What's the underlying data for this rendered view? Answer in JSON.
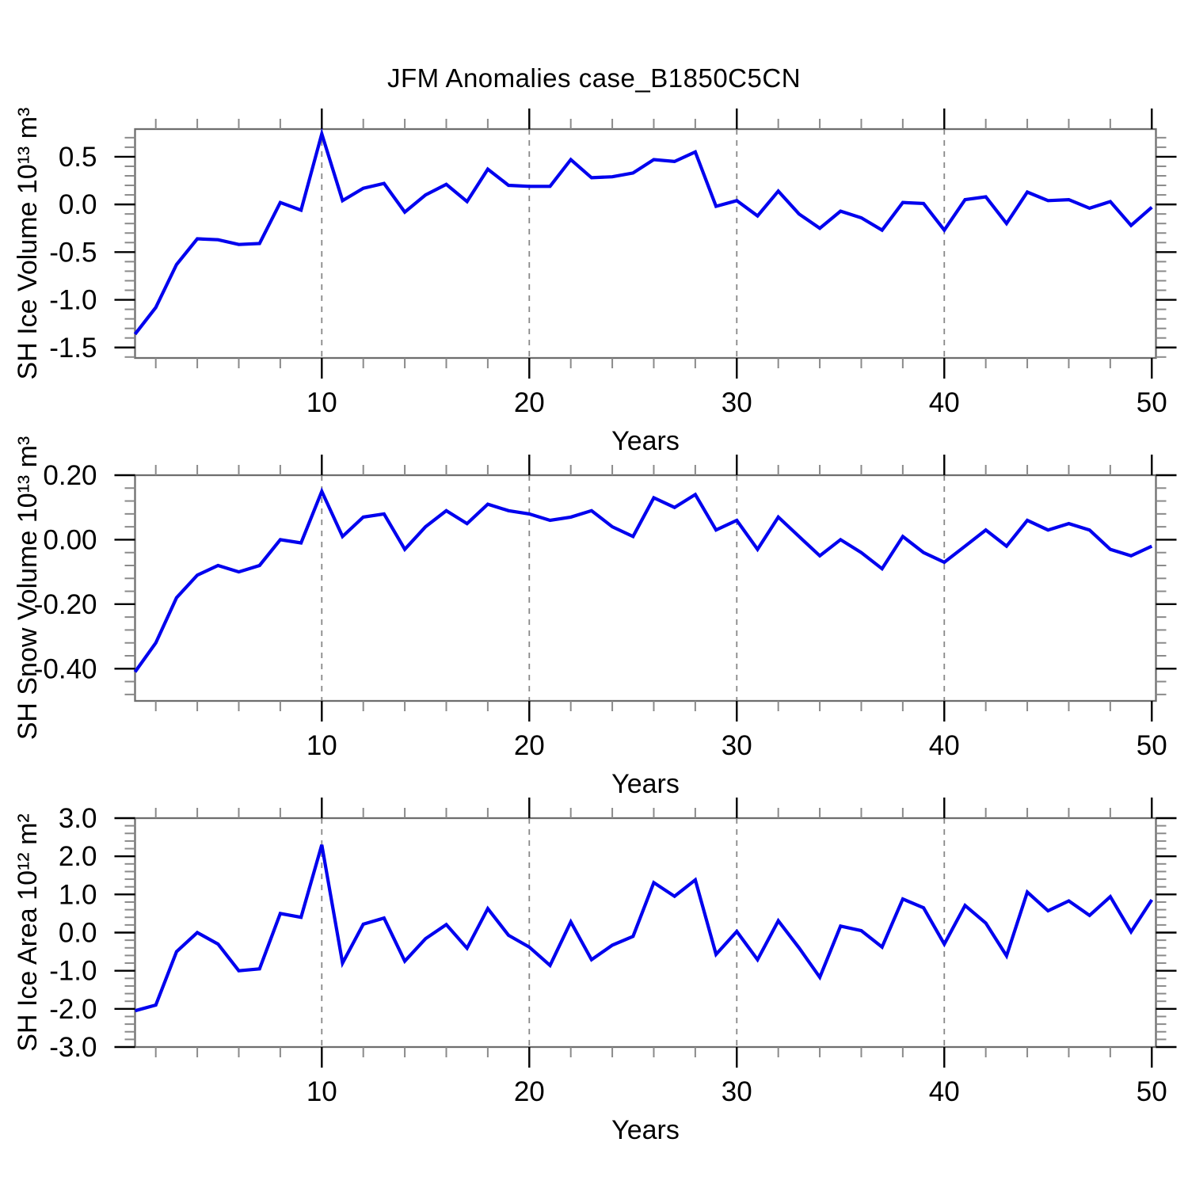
{
  "title": "JFM Anomalies case_B1850C5CN",
  "colors": {
    "line": "#0000ee",
    "frame": "#6e6e6e",
    "major_tick": "#000000",
    "minor_tick": "#8a8a8a",
    "grid": "#888888",
    "text": "#000000",
    "background": "#ffffff"
  },
  "x_axis": {
    "label": "Years",
    "min": 1,
    "max": 50.2,
    "major_ticks": [
      10,
      20,
      30,
      40,
      50
    ],
    "minor_tick_step": 2,
    "gridlines": [
      10,
      20,
      30,
      40
    ],
    "years": [
      1,
      2,
      3,
      4,
      5,
      6,
      7,
      8,
      9,
      10,
      11,
      12,
      13,
      14,
      15,
      16,
      17,
      18,
      19,
      20,
      21,
      22,
      23,
      24,
      25,
      26,
      27,
      28,
      29,
      30,
      31,
      32,
      33,
      34,
      35,
      36,
      37,
      38,
      39,
      40,
      41,
      42,
      43,
      44,
      45,
      46,
      47,
      48,
      49,
      50
    ]
  },
  "chart_data": [
    {
      "type": "line",
      "name": "sh-ice-volume",
      "ylabel": "SH Ice Volume 10¹³ m³",
      "xlabel": "Years",
      "ylim": [
        -1.61,
        0.79
      ],
      "yminor_step": 0.1,
      "grid": "dashed-vertical",
      "legend": "none",
      "yticks": [
        {
          "v": 0.5,
          "label": "0.5"
        },
        {
          "v": 0.0,
          "label": "0.0"
        },
        {
          "v": -0.5,
          "label": "-0.5"
        },
        {
          "v": -1.0,
          "label": "-1.0"
        },
        {
          "v": -1.5,
          "label": "-1.5"
        }
      ],
      "values": [
        -1.36,
        -1.08,
        -0.63,
        -0.36,
        -0.37,
        -0.42,
        -0.41,
        0.02,
        -0.06,
        0.74,
        0.04,
        0.17,
        0.22,
        -0.08,
        0.1,
        0.21,
        0.03,
        0.37,
        0.2,
        0.19,
        0.19,
        0.47,
        0.28,
        0.29,
        0.33,
        0.47,
        0.45,
        0.55,
        -0.02,
        0.04,
        -0.12,
        0.14,
        -0.1,
        -0.25,
        -0.07,
        -0.14,
        -0.27,
        0.02,
        0.01,
        -0.27,
        0.05,
        0.08,
        -0.2,
        0.13,
        0.04,
        0.05,
        -0.04,
        0.03,
        -0.22,
        -0.03
      ]
    },
    {
      "type": "line",
      "name": "sh-snow-volume",
      "ylabel": "SH Snow Volume 10¹³ m³",
      "xlabel": "Years",
      "ylim": [
        -0.5,
        0.2
      ],
      "yminor_step": 0.04,
      "grid": "dashed-vertical",
      "legend": "none",
      "yticks": [
        {
          "v": 0.2,
          "label": "0.20"
        },
        {
          "v": 0.0,
          "label": "0.00"
        },
        {
          "v": -0.2,
          "label": "-0.20"
        },
        {
          "v": -0.4,
          "label": "-0.40"
        }
      ],
      "values": [
        -0.41,
        -0.32,
        -0.18,
        -0.11,
        -0.08,
        -0.1,
        -0.08,
        0.0,
        -0.01,
        0.15,
        0.01,
        0.07,
        0.08,
        -0.03,
        0.04,
        0.09,
        0.05,
        0.11,
        0.09,
        0.08,
        0.06,
        0.07,
        0.09,
        0.04,
        0.01,
        0.13,
        0.1,
        0.14,
        0.03,
        0.06,
        -0.03,
        0.07,
        0.01,
        -0.05,
        0.0,
        -0.04,
        -0.09,
        0.01,
        -0.04,
        -0.07,
        -0.02,
        0.03,
        -0.02,
        0.06,
        0.03,
        0.05,
        0.03,
        -0.03,
        -0.05,
        -0.02
      ]
    },
    {
      "type": "line",
      "name": "sh-ice-area",
      "ylabel": "SH Ice Area 10¹² m²",
      "xlabel": "Years",
      "ylim": [
        -3.0,
        3.0
      ],
      "yminor_step": 0.2,
      "grid": "dashed-vertical",
      "legend": "none",
      "yticks": [
        {
          "v": 3.0,
          "label": "3.0"
        },
        {
          "v": 2.0,
          "label": "2.0"
        },
        {
          "v": 1.0,
          "label": "1.0"
        },
        {
          "v": 0.0,
          "label": "0.0"
        },
        {
          "v": -1.0,
          "label": "-1.0"
        },
        {
          "v": -2.0,
          "label": "-2.0"
        },
        {
          "v": -3.0,
          "label": "-3.0"
        }
      ],
      "values": [
        -2.05,
        -1.9,
        -0.5,
        0.0,
        -0.3,
        -1.0,
        -0.95,
        0.5,
        0.4,
        2.3,
        -0.8,
        0.22,
        0.38,
        -0.75,
        -0.16,
        0.21,
        -0.41,
        0.63,
        -0.07,
        -0.38,
        -0.86,
        0.28,
        -0.71,
        -0.33,
        -0.1,
        1.31,
        0.95,
        1.38,
        -0.57,
        0.03,
        -0.71,
        0.31,
        -0.4,
        -1.17,
        0.17,
        0.05,
        -0.38,
        0.88,
        0.65,
        -0.3,
        0.71,
        0.25,
        -0.61,
        1.06,
        0.57,
        0.83,
        0.45,
        0.94,
        0.02,
        0.86
      ]
    }
  ]
}
